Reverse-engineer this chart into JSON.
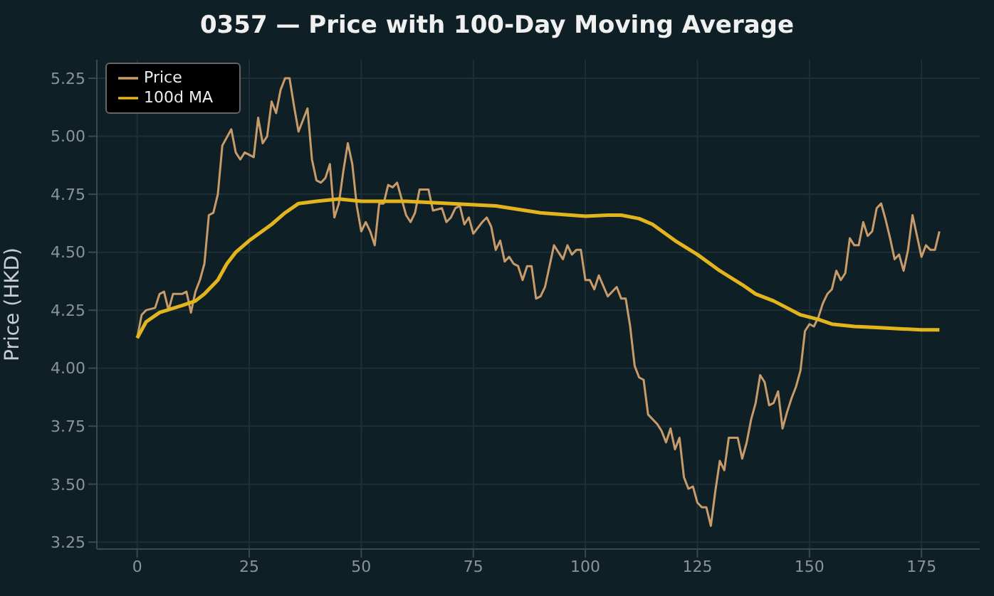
{
  "chart_data": {
    "type": "line",
    "title": "0357 — Price with 100-Day Moving Average",
    "ylabel": "Price (HKD)",
    "xlim": [
      -9,
      188
    ],
    "xticks": [
      0,
      25,
      50,
      75,
      100,
      125,
      150,
      175
    ],
    "ylim": [
      3.22,
      5.33
    ],
    "yticks": [
      3.25,
      {
        "value": 3.5,
        "label": "3.50"
      },
      3.75,
      {
        "value": 4.0,
        "label": "4.00"
      },
      4.25,
      {
        "value": 4.5,
        "label": "4.50"
      },
      4.75,
      {
        "value": 5.0,
        "label": "5.00"
      },
      5.25
    ],
    "grid": true,
    "legend": "top left",
    "line_style": "solid",
    "series": [
      {
        "name": "Price",
        "color": "#c89b6a",
        "x": [
          0,
          1,
          2,
          4,
          5,
          6,
          7,
          8,
          10,
          11,
          12,
          13,
          14,
          15,
          16,
          17,
          18,
          19,
          21,
          22,
          23,
          24,
          26,
          27,
          28,
          29,
          30,
          31,
          32,
          33,
          34,
          35,
          36,
          38,
          39,
          40,
          41,
          42,
          43,
          44,
          45,
          46,
          47,
          48,
          49,
          50,
          51,
          52,
          53,
          54,
          55,
          56,
          57,
          58,
          60,
          61,
          62,
          63,
          65,
          66,
          68,
          69,
          70,
          71,
          72,
          73,
          74,
          75,
          77,
          78,
          79,
          80,
          81,
          82,
          83,
          84,
          85,
          86,
          87,
          88,
          89,
          90,
          91,
          92,
          93,
          94,
          95,
          96,
          97,
          98,
          99,
          100,
          101,
          102,
          103,
          105,
          107,
          108,
          109,
          110,
          111,
          112,
          113,
          114,
          116,
          117,
          118,
          119,
          120,
          121,
          122,
          123,
          124,
          125,
          126,
          127,
          128,
          129,
          130,
          131,
          132,
          134,
          135,
          136,
          137,
          138,
          139,
          140,
          141,
          142,
          143,
          144,
          145,
          146,
          147,
          148,
          149,
          150,
          151,
          152,
          153,
          154,
          155,
          156,
          157,
          158,
          159,
          160,
          161,
          162,
          163,
          164,
          165,
          166,
          167,
          168,
          169,
          170,
          171,
          172,
          173,
          174,
          175,
          176,
          177,
          178,
          179
        ],
        "values": [
          4.13,
          4.23,
          4.25,
          4.26,
          4.32,
          4.33,
          4.25,
          4.32,
          4.32,
          4.33,
          4.24,
          4.33,
          4.38,
          4.45,
          4.66,
          4.67,
          4.75,
          4.96,
          5.03,
          4.93,
          4.9,
          4.93,
          4.91,
          5.08,
          4.97,
          5.0,
          5.15,
          5.1,
          5.2,
          5.25,
          5.25,
          5.13,
          5.02,
          5.12,
          4.9,
          4.81,
          4.8,
          4.82,
          4.88,
          4.65,
          4.71,
          4.85,
          4.97,
          4.88,
          4.7,
          4.59,
          4.63,
          4.59,
          4.53,
          4.71,
          4.71,
          4.79,
          4.78,
          4.8,
          4.66,
          4.63,
          4.67,
          4.77,
          4.77,
          4.68,
          4.69,
          4.63,
          4.65,
          4.69,
          4.7,
          4.62,
          4.65,
          4.58,
          4.63,
          4.65,
          4.61,
          4.51,
          4.55,
          4.46,
          4.48,
          4.45,
          4.44,
          4.38,
          4.44,
          4.44,
          4.3,
          4.31,
          4.35,
          4.44,
          4.53,
          4.5,
          4.47,
          4.53,
          4.49,
          4.51,
          4.51,
          4.38,
          4.38,
          4.34,
          4.4,
          4.31,
          4.35,
          4.3,
          4.3,
          4.18,
          4.01,
          3.96,
          3.95,
          3.8,
          3.76,
          3.73,
          3.68,
          3.74,
          3.65,
          3.7,
          3.53,
          3.48,
          3.49,
          3.42,
          3.4,
          3.4,
          3.32,
          3.47,
          3.6,
          3.56,
          3.7,
          3.7,
          3.61,
          3.68,
          3.78,
          3.85,
          3.97,
          3.94,
          3.84,
          3.85,
          3.9,
          3.74,
          3.81,
          3.87,
          3.92,
          3.99,
          4.16,
          4.19,
          4.18,
          4.22,
          4.28,
          4.32,
          4.34,
          4.42,
          4.38,
          4.41,
          4.56,
          4.53,
          4.53,
          4.63,
          4.57,
          4.59,
          4.69,
          4.71,
          4.64,
          4.56,
          4.47,
          4.49,
          4.42,
          4.51,
          4.66,
          4.57,
          4.48,
          4.53,
          4.51,
          4.51,
          4.59
        ]
      },
      {
        "name": "100d MA",
        "color": "#e3b51c",
        "x": [
          0,
          2,
          5,
          10,
          13,
          15,
          18,
          20,
          22,
          25,
          30,
          33,
          36,
          40,
          45,
          50,
          60,
          70,
          80,
          90,
          100,
          105,
          108,
          112,
          115,
          120,
          125,
          130,
          135,
          138,
          142,
          145,
          148,
          152,
          155,
          160,
          165,
          170,
          175,
          179
        ],
        "values": [
          4.13,
          4.2,
          4.24,
          4.27,
          4.29,
          4.32,
          4.38,
          4.45,
          4.5,
          4.55,
          4.62,
          4.67,
          4.71,
          4.72,
          4.73,
          4.72,
          4.72,
          4.71,
          4.7,
          4.67,
          4.655,
          4.66,
          4.66,
          4.645,
          4.62,
          4.55,
          4.49,
          4.42,
          4.36,
          4.32,
          4.29,
          4.26,
          4.23,
          4.21,
          4.19,
          4.18,
          4.175,
          4.17,
          4.165,
          4.165
        ]
      }
    ]
  }
}
